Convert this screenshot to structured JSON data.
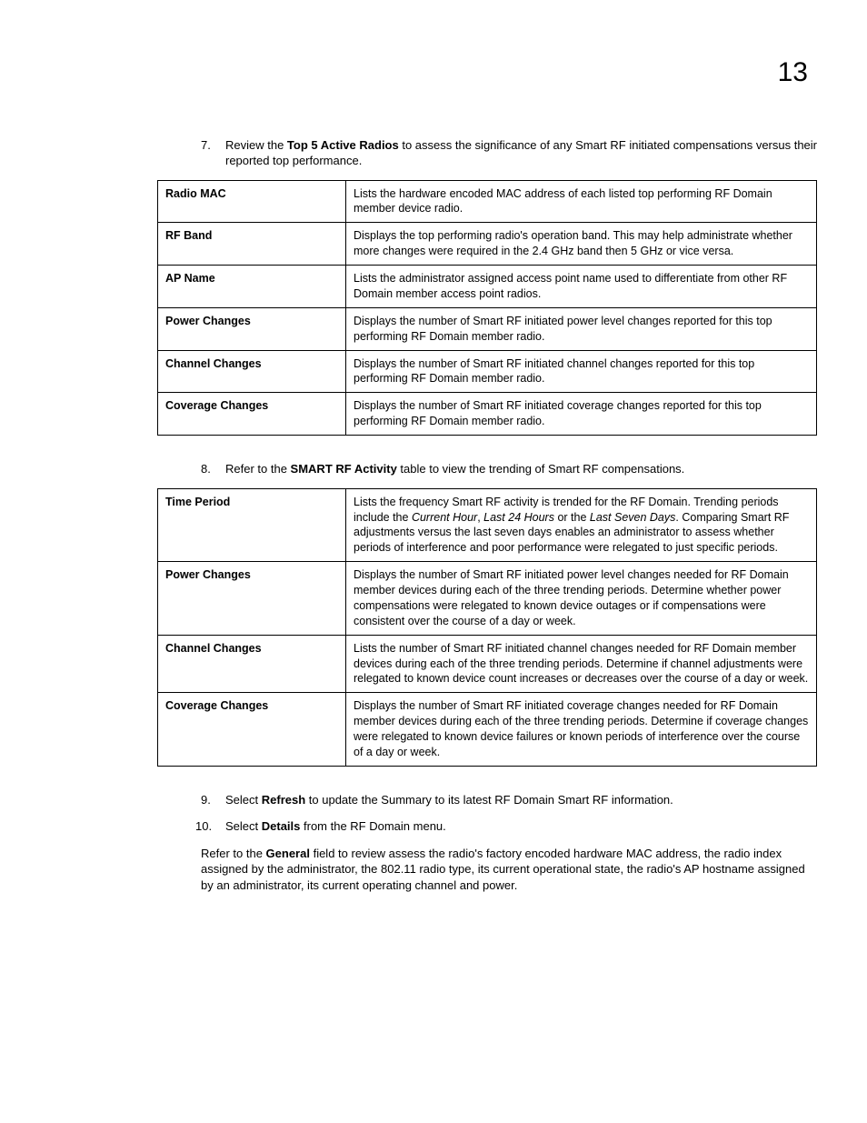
{
  "page_number": "13",
  "step7": {
    "num": "7.",
    "pre": "Review the ",
    "bold": "Top 5 Active Radios",
    "post": " to assess the significance of any Smart RF initiated compensations versus their reported top performance."
  },
  "table1": {
    "rows": [
      {
        "term": "Radio MAC",
        "desc": "Lists the hardware encoded MAC address of each listed top performing RF Domain member device radio."
      },
      {
        "term": "RF Band",
        "desc": "Displays the top performing radio's operation band. This may help administrate whether more changes were required in the 2.4 GHz band then 5 GHz or vice versa."
      },
      {
        "term": "AP Name",
        "desc": "Lists the administrator assigned access point name used to differentiate from other RF Domain member access point radios."
      },
      {
        "term": "Power Changes",
        "desc": "Displays the number of Smart RF initiated power level changes reported for this top performing RF Domain member radio."
      },
      {
        "term": "Channel Changes",
        "desc": "Displays the number of Smart RF initiated channel changes reported for this top performing RF Domain member radio."
      },
      {
        "term": "Coverage Changes",
        "desc": "Displays the number of Smart RF initiated coverage changes reported for this top performing RF Domain member radio."
      }
    ]
  },
  "step8": {
    "num": "8.",
    "pre": "Refer to the ",
    "bold": "SMART RF Activity",
    "post": " table to view the trending of Smart RF compensations."
  },
  "table2": {
    "rows": [
      {
        "term": "Time Period",
        "desc_pre": "Lists the frequency Smart RF activity is trended for the RF Domain. Trending periods include the ",
        "i1": "Current Hour",
        "mid1": ", ",
        "i2": "Last 24 Hours",
        "mid2": " or the ",
        "i3": "Last Seven Days",
        "desc_post": ". Comparing Smart RF adjustments versus the last seven days enables an administrator to assess whether periods of interference and poor performance were relegated to just specific periods."
      },
      {
        "term": "Power Changes",
        "desc": "Displays the number of Smart RF initiated power level changes needed for RF Domain member devices during each of the three trending periods. Determine whether power compensations were relegated to known device outages or if compensations were consistent over the course of a day or week."
      },
      {
        "term": "Channel Changes",
        "desc": "Lists the number of Smart RF initiated channel changes needed for RF Domain member devices during each of the three trending periods. Determine if channel adjustments were relegated to known device count increases or decreases over the course of a day or week."
      },
      {
        "term": "Coverage Changes",
        "desc": "Displays the number of Smart RF initiated coverage changes needed for RF Domain member devices during each of the three trending periods. Determine if coverage changes were relegated to known device failures or known periods of interference over the course of a day or week."
      }
    ]
  },
  "step9": {
    "num": "9.",
    "pre": "Select ",
    "bold": "Refresh",
    "post": " to update the Summary to its latest RF Domain Smart RF information."
  },
  "step10": {
    "num": "10.",
    "pre": "Select ",
    "bold": "Details",
    "post": " from the RF Domain menu."
  },
  "closing": {
    "pre": "Refer to the ",
    "bold": "General",
    "post": " field to review assess the radio's factory encoded hardware MAC address, the radio index assigned by the administrator, the 802.11 radio type, its current operational state, the radio's AP hostname assigned by an administrator, its current operating channel and power."
  }
}
